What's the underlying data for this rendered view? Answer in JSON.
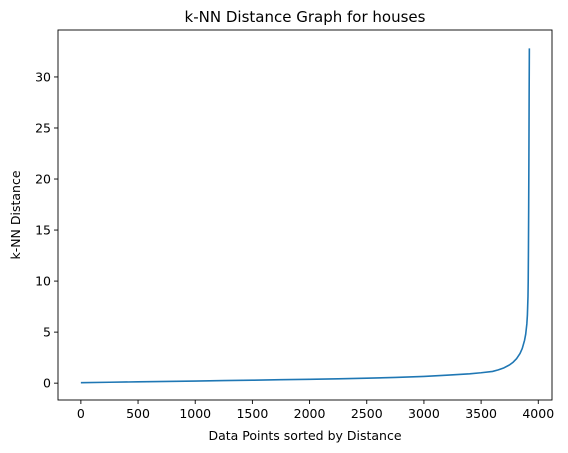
{
  "chart_data": {
    "type": "line",
    "title": "k-NN Distance Graph for houses",
    "xlabel": "Data Points sorted by Distance",
    "ylabel": "k-NN Distance",
    "xlim": [
      -200,
      4120
    ],
    "ylim": [
      -1.65,
      34.6
    ],
    "xticks": [
      0,
      500,
      1000,
      1500,
      2000,
      2500,
      3000,
      3500,
      4000
    ],
    "yticks": [
      0,
      5,
      10,
      15,
      20,
      25,
      30
    ],
    "grid": false,
    "legend": "none",
    "series": [
      {
        "color": "#1f77b4",
        "x": [
          0,
          250,
          500,
          750,
          1000,
          1250,
          1500,
          1750,
          2000,
          2250,
          2500,
          2750,
          3000,
          3200,
          3400,
          3500,
          3600,
          3650,
          3700,
          3750,
          3780,
          3810,
          3840,
          3860,
          3880,
          3890,
          3900,
          3905,
          3910,
          3912,
          3914,
          3916,
          3918,
          3920,
          3922
        ],
        "y": [
          0.05,
          0.09,
          0.13,
          0.17,
          0.21,
          0.25,
          0.29,
          0.34,
          0.38,
          0.43,
          0.49,
          0.56,
          0.66,
          0.78,
          0.92,
          1.02,
          1.15,
          1.3,
          1.5,
          1.8,
          2.05,
          2.4,
          2.9,
          3.4,
          4.2,
          4.8,
          5.8,
          6.7,
          8.5,
          10.0,
          13.0,
          17.0,
          22.0,
          28.0,
          32.8
        ]
      }
    ]
  }
}
